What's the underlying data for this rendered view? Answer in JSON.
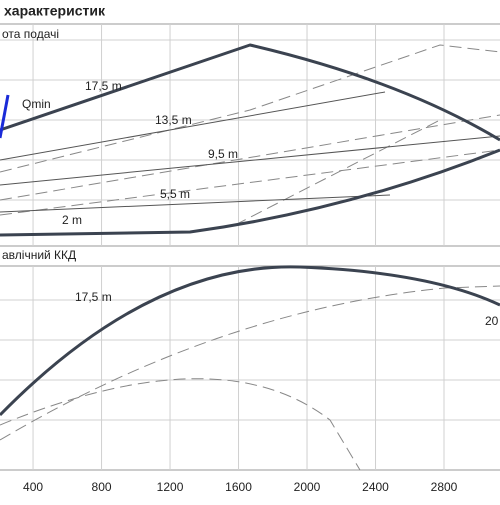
{
  "header": {
    "title": "характеристик"
  },
  "chart_data": {
    "type": "line",
    "panels": [
      {
        "label": "ота подачі",
        "curve_labels": [
          "17,5 m",
          "13,5 m",
          "9,5 m",
          "5,5 m",
          "2 m",
          "Qmin"
        ]
      },
      {
        "label": "авлічний ККД",
        "curve_labels": [
          "17,5 m",
          "20"
        ]
      }
    ],
    "xlim": [
      207,
      3127
    ],
    "xticks": [
      400,
      800,
      1200,
      1600,
      2000,
      2400,
      2800
    ]
  }
}
